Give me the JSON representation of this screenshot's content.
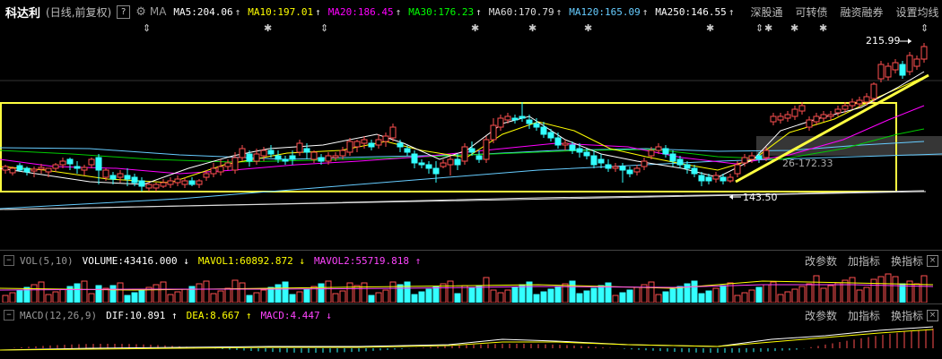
{
  "header": {
    "stock_name": "科达利",
    "mode": "(日线,前复权)",
    "help": "?",
    "ma_label": "MA",
    "ma": [
      {
        "label": "MA5:204.06",
        "arrow": "↑",
        "color": "#ffffff"
      },
      {
        "label": "MA10:197.01",
        "arrow": "↑",
        "color": "#ffff00"
      },
      {
        "label": "MA20:186.45",
        "arrow": "↑",
        "color": "#ff00ff"
      },
      {
        "label": "MA30:176.23",
        "arrow": "↑",
        "color": "#00ff00"
      },
      {
        "label": "MA60:170.79",
        "arrow": "↑",
        "color": "#dddddd"
      },
      {
        "label": "MA120:165.09",
        "arrow": "↑",
        "color": "#66ccff"
      },
      {
        "label": "MA250:146.55",
        "arrow": "↑",
        "color": "#ffffff"
      }
    ],
    "menu": [
      "深股通",
      "可转债",
      "融资融券",
      "设置均线"
    ]
  },
  "markers": [
    "⇕",
    "✱",
    "⇕",
    "✱",
    "✱",
    "✱",
    "✱",
    "⇕",
    "✱",
    "✱",
    "✱",
    "⇕"
  ],
  "main": {
    "high_label": "215.99",
    "low_label": "143.50",
    "level_label": "26-172.33",
    "colors": {
      "up": "#ff5050",
      "down": "#33ffff",
      "box": "#ffff40"
    }
  },
  "volume_panel": {
    "name": "VOL(5,10)",
    "volume": "VOLUME:43416.000",
    "volume_arrow": "↓",
    "mavol1": "MAVOL1:60892.872",
    "mavol1_arrow": "↓",
    "mavol2": "MAVOL2:55719.818",
    "mavol2_arrow": "↑",
    "buttons": [
      "改参数",
      "加指标",
      "换指标"
    ]
  },
  "macd_panel": {
    "name": "MACD(12,26,9)",
    "dif": "DIF:10.891",
    "dif_arrow": "↑",
    "dea": "DEA:8.667",
    "dea_arrow": "↑",
    "macd": "MACD:4.447",
    "macd_arrow": "↓",
    "buttons": [
      "改参数",
      "加指标",
      "换指标"
    ]
  }
}
